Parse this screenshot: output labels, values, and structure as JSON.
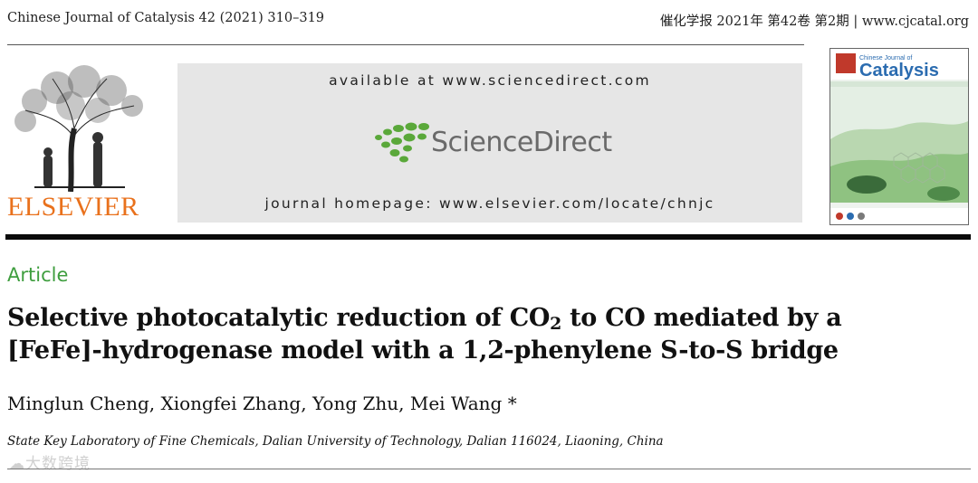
{
  "header": {
    "journal_ref": "Chinese Journal of Catalysis 42 (2021) 310–319",
    "journal_ref_cn": "催化学报 2021年 第42卷 第2期 | www.cjcatal.org"
  },
  "publisher": {
    "name": "ELSEVIER",
    "brand_color": "#e9711c"
  },
  "sciencedirect": {
    "available_text": "available at www.sciencedirect.com",
    "logo_text": "ScienceDirect",
    "homepage_text": "journal homepage: www.elsevier.com/locate/chnjc",
    "logo_color": "#5aa83a"
  },
  "cover": {
    "title_small": "Chinese Journal of",
    "title_big": "Catalysis"
  },
  "article": {
    "type": "Article",
    "type_color": "#3f9e3f",
    "title_line1_a": "Selective photocatalytic reduction of CO",
    "title_line1_sub": "2",
    "title_line1_b": " to CO mediated by a",
    "title_line2": "[FeFe]-hydrogenase model with a 1,2-phenylene S-to-S bridge",
    "authors": "Minglun Cheng, Xiongfei Zhang, Yong Zhu, Mei Wang *",
    "affiliation": "State Key Laboratory of Fine Chemicals, Dalian University of Technology, Dalian 116024, Liaoning, China"
  },
  "watermark": {
    "text": "大数跨境"
  }
}
